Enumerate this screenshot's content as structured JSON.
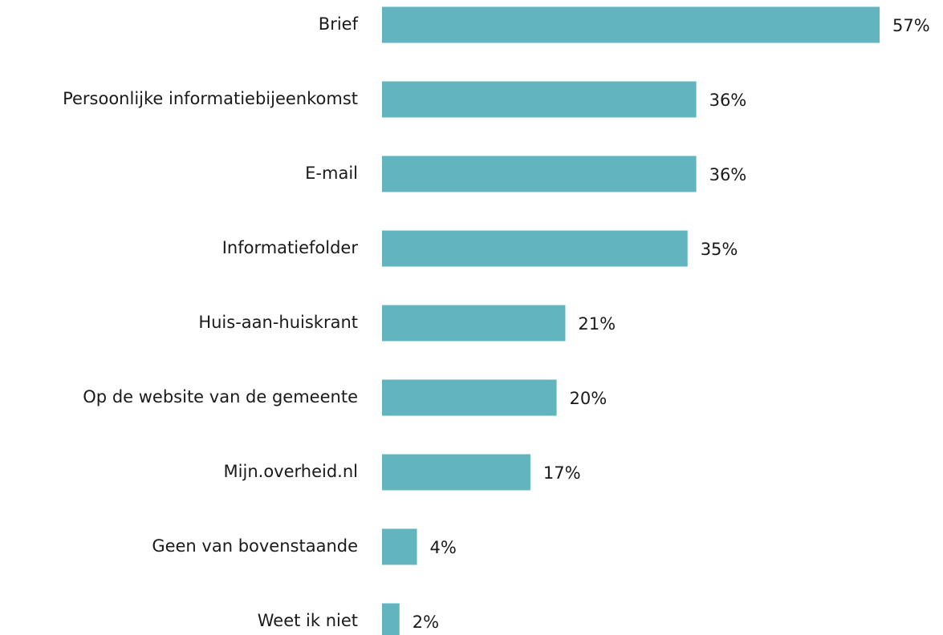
{
  "chart_data": {
    "type": "bar",
    "orientation": "horizontal",
    "categories": [
      "Brief",
      "Persoonlijke informatiebijeenkomst",
      "E-mail",
      "Informatiefolder",
      "Huis-aan-huiskrant",
      "Op de website van de gemeente",
      "Mijn.overheid.nl",
      "Geen van bovenstaande",
      "Weet ik niet"
    ],
    "values": [
      57,
      36,
      36,
      35,
      21,
      20,
      17,
      4,
      2
    ],
    "value_labels": [
      "57%",
      "36%",
      "36%",
      "35%",
      "21%",
      "20%",
      "17%",
      "4%",
      "2%"
    ],
    "color": "#62b5bf"
  }
}
